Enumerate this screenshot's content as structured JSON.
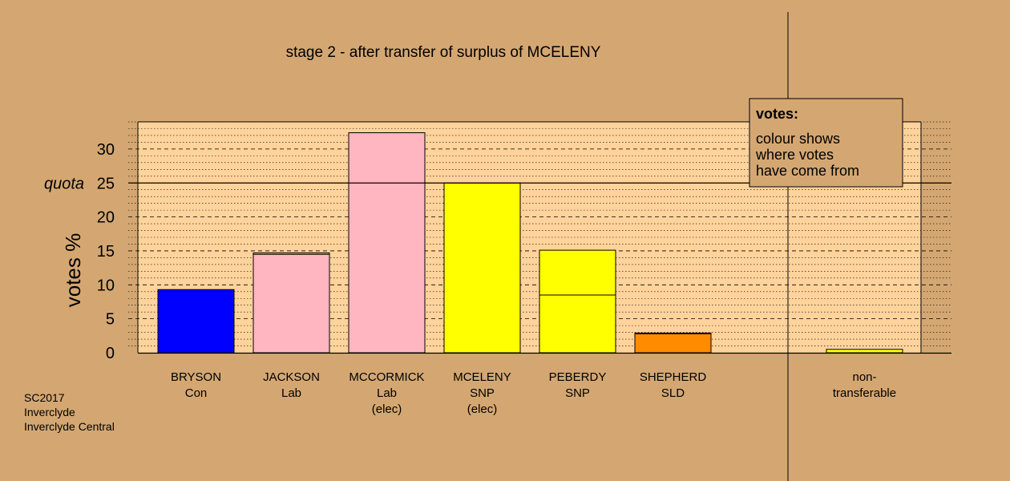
{
  "chart_data": {
    "type": "bar",
    "title": "stage 2 - after transfer of surplus of MCELENY",
    "ylabel": "votes %",
    "ylim": [
      0,
      34
    ],
    "yticks": [
      0,
      5,
      10,
      15,
      20,
      25,
      30
    ],
    "quota": 25,
    "quota_label": "quota",
    "candidates": [
      {
        "name": "BRYSON",
        "party": "Con",
        "status": "",
        "segments": [
          {
            "value": 9.3,
            "color": "#0000ff"
          }
        ]
      },
      {
        "name": "JACKSON",
        "party": "Lab",
        "status": "",
        "segments": [
          {
            "value": 14.5,
            "color": "#ffb6c1"
          },
          {
            "value": 0.2,
            "color": "#ffff00"
          }
        ]
      },
      {
        "name": "MCCORMICK",
        "party": "Lab",
        "status": "(elec)",
        "segments": [
          {
            "value": 32.4,
            "color": "#ffb6c1"
          }
        ]
      },
      {
        "name": "MCELENY",
        "party": "SNP",
        "status": "(elec)",
        "segments": [
          {
            "value": 25.0,
            "color": "#ffff00"
          }
        ]
      },
      {
        "name": "PEBERDY",
        "party": "SNP",
        "status": "",
        "segments": [
          {
            "value": 8.5,
            "color": "#ffff00"
          },
          {
            "value": 6.6,
            "color": "#ffff00"
          }
        ]
      },
      {
        "name": "SHEPHERD",
        "party": "SLD",
        "status": "",
        "segments": [
          {
            "value": 2.8,
            "color": "#ff8c00"
          },
          {
            "value": 0.1,
            "color": "#ffff00"
          }
        ]
      }
    ],
    "nontransferable": {
      "label_line1": "non-",
      "label_line2": "transferable",
      "value": 0.5,
      "color": "#ffff00"
    },
    "legend": {
      "title": "votes:",
      "lines": [
        "colour shows",
        "where votes",
        "have come from"
      ],
      "position": "top-right"
    }
  },
  "footer": {
    "line1": "SC2017",
    "line2": "Inverclyde",
    "line3": "Inverclyde Central"
  }
}
